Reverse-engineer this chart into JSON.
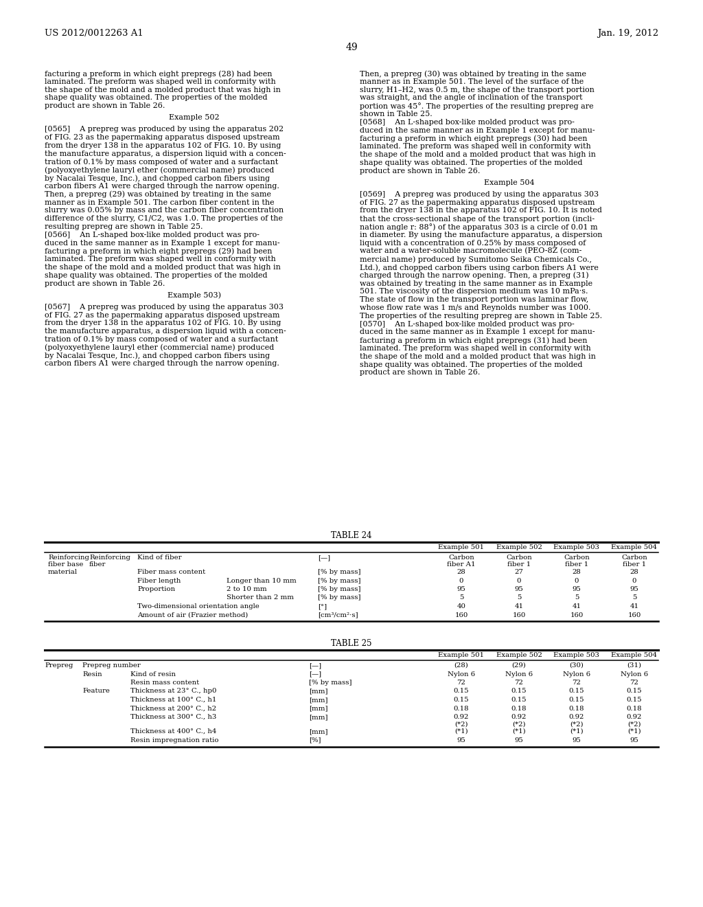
{
  "header_left": "US 2012/0012263 A1",
  "header_right": "Jan. 19, 2012",
  "page_number": "49",
  "background_color": "#ffffff",
  "col1_lines": [
    {
      "text": "facturing a preform in which eight prepregs (28) had been",
      "bold": false,
      "indent": 0
    },
    {
      "text": "laminated. The preform was shaped well in conformity with",
      "bold": false,
      "indent": 0
    },
    {
      "text": "the shape of the mold and a molded product that was high in",
      "bold": false,
      "indent": 0
    },
    {
      "text": "shape quality was obtained. The properties of the molded",
      "bold": false,
      "indent": 0
    },
    {
      "text": "product are shown in Table 26.",
      "bold": false,
      "indent": 0
    },
    {
      "text": "",
      "bold": false,
      "indent": 0
    },
    {
      "text": "Example 502",
      "bold": false,
      "indent": 0,
      "center": true
    },
    {
      "text": "",
      "bold": false,
      "indent": 0
    },
    {
      "text": "[0565]    A prepreg was produced by using the apparatus 202",
      "bold": false,
      "indent": 0
    },
    {
      "text": "of FIG. 23 as the papermaking apparatus disposed upstream",
      "bold": false,
      "indent": 0
    },
    {
      "text": "from the dryer 138 in the apparatus 102 of FIG. 10. By using",
      "bold": false,
      "indent": 0
    },
    {
      "text": "the manufacture apparatus, a dispersion liquid with a concen-",
      "bold": false,
      "indent": 0
    },
    {
      "text": "tration of 0.1% by mass composed of water and a surfactant",
      "bold": false,
      "indent": 0
    },
    {
      "text": "(polyoxyethylene lauryl ether (commercial name) produced",
      "bold": false,
      "indent": 0
    },
    {
      "text": "by Nacalai Tesque, Inc.), and chopped carbon fibers using",
      "bold": false,
      "indent": 0
    },
    {
      "text": "carbon fibers A1 were charged through the narrow opening.",
      "bold": false,
      "indent": 0
    },
    {
      "text": "Then, a prepreg (29) was obtained by treating in the same",
      "bold": false,
      "indent": 0
    },
    {
      "text": "manner as in Example 501. The carbon fiber content in the",
      "bold": false,
      "indent": 0
    },
    {
      "text": "slurry was 0.05% by mass and the carbon fiber concentration",
      "bold": false,
      "indent": 0
    },
    {
      "text": "difference of the slurry, C1/C2, was 1.0. The properties of the",
      "bold": false,
      "indent": 0
    },
    {
      "text": "resulting prepreg are shown in Table 25.",
      "bold": false,
      "indent": 0
    },
    {
      "text": "[0566]    An L-shaped box-like molded product was pro-",
      "bold": false,
      "indent": 0
    },
    {
      "text": "duced in the same manner as in Example 1 except for manu-",
      "bold": false,
      "indent": 0
    },
    {
      "text": "facturing a preform in which eight prepregs (29) had been",
      "bold": false,
      "indent": 0
    },
    {
      "text": "laminated. The preform was shaped well in conformity with",
      "bold": false,
      "indent": 0
    },
    {
      "text": "the shape of the mold and a molded product that was high in",
      "bold": false,
      "indent": 0
    },
    {
      "text": "shape quality was obtained. The properties of the molded",
      "bold": false,
      "indent": 0
    },
    {
      "text": "product are shown in Table 26.",
      "bold": false,
      "indent": 0
    },
    {
      "text": "",
      "bold": false,
      "indent": 0
    },
    {
      "text": "Example 503)",
      "bold": false,
      "indent": 0,
      "center": true
    },
    {
      "text": "",
      "bold": false,
      "indent": 0
    },
    {
      "text": "[0567]    A prepreg was produced by using the apparatus 303",
      "bold": false,
      "indent": 0
    },
    {
      "text": "of FIG. 27 as the papermaking apparatus disposed upstream",
      "bold": false,
      "indent": 0
    },
    {
      "text": "from the dryer 138 in the apparatus 102 of FIG. 10. By using",
      "bold": false,
      "indent": 0
    },
    {
      "text": "the manufacture apparatus, a dispersion liquid with a concen-",
      "bold": false,
      "indent": 0
    },
    {
      "text": "tration of 0.1% by mass composed of water and a surfactant",
      "bold": false,
      "indent": 0
    },
    {
      "text": "(polyoxyethylene lauryl ether (commercial name) produced",
      "bold": false,
      "indent": 0
    },
    {
      "text": "by Nacalai Tesque, Inc.), and chopped carbon fibers using",
      "bold": false,
      "indent": 0
    },
    {
      "text": "carbon fibers A1 were charged through the narrow opening.",
      "bold": false,
      "indent": 0
    }
  ],
  "col2_lines": [
    {
      "text": "Then, a prepreg (30) was obtained by treating in the same",
      "bold": false,
      "indent": 0
    },
    {
      "text": "manner as in Example 501. The level of the surface of the",
      "bold": false,
      "indent": 0
    },
    {
      "text": "slurry, H1–H2, was 0.5 m, the shape of the transport portion",
      "bold": false,
      "indent": 0
    },
    {
      "text": "was straight, and the angle of inclination of the transport",
      "bold": false,
      "indent": 0
    },
    {
      "text": "portion was 45°. The properties of the resulting prepreg are",
      "bold": false,
      "indent": 0
    },
    {
      "text": "shown in Table 25.",
      "bold": false,
      "indent": 0
    },
    {
      "text": "[0568]    An L-shaped box-like molded product was pro-",
      "bold": false,
      "indent": 0
    },
    {
      "text": "duced in the same manner as in Example 1 except for manu-",
      "bold": false,
      "indent": 0
    },
    {
      "text": "facturing a preform in which eight prepregs (30) had been",
      "bold": false,
      "indent": 0
    },
    {
      "text": "laminated. The preform was shaped well in conformity with",
      "bold": false,
      "indent": 0
    },
    {
      "text": "the shape of the mold and a molded product that was high in",
      "bold": false,
      "indent": 0
    },
    {
      "text": "shape quality was obtained. The properties of the molded",
      "bold": false,
      "indent": 0
    },
    {
      "text": "product are shown in Table 26.",
      "bold": false,
      "indent": 0
    },
    {
      "text": "",
      "bold": false,
      "indent": 0
    },
    {
      "text": "Example 504",
      "bold": false,
      "indent": 0,
      "center": true
    },
    {
      "text": "",
      "bold": false,
      "indent": 0
    },
    {
      "text": "[0569]    A prepreg was produced by using the apparatus 303",
      "bold": false,
      "indent": 0
    },
    {
      "text": "of FIG. 27 as the papermaking apparatus disposed upstream",
      "bold": false,
      "indent": 0
    },
    {
      "text": "from the dryer 138 in the apparatus 102 of FIG. 10. It is noted",
      "bold": false,
      "indent": 0
    },
    {
      "text": "that the cross-sectional shape of the transport portion (incli-",
      "bold": false,
      "indent": 0
    },
    {
      "text": "nation angle r: 88°) of the apparatus 303 is a circle of 0.01 m",
      "bold": false,
      "indent": 0
    },
    {
      "text": "in diameter. By using the manufacture apparatus, a dispersion",
      "bold": false,
      "indent": 0
    },
    {
      "text": "liquid with a concentration of 0.25% by mass composed of",
      "bold": false,
      "indent": 0
    },
    {
      "text": "water and a water-soluble macromolecule (PEO-8Z (com-",
      "bold": false,
      "indent": 0
    },
    {
      "text": "mercial name) produced by Sumitomo Seika Chemicals Co.,",
      "bold": false,
      "indent": 0
    },
    {
      "text": "Ltd.), and chopped carbon fibers using carbon fibers A1 were",
      "bold": false,
      "indent": 0
    },
    {
      "text": "charged through the narrow opening. Then, a prepreg (31)",
      "bold": false,
      "indent": 0
    },
    {
      "text": "was obtained by treating in the same manner as in Example",
      "bold": false,
      "indent": 0
    },
    {
      "text": "501. The viscosity of the dispersion medium was 10 mPa·s.",
      "bold": false,
      "indent": 0
    },
    {
      "text": "The state of flow in the transport portion was laminar flow,",
      "bold": false,
      "indent": 0
    },
    {
      "text": "whose flow rate was 1 m/s and Reynolds number was 1000.",
      "bold": false,
      "indent": 0
    },
    {
      "text": "The properties of the resulting prepreg are shown in Table 25.",
      "bold": false,
      "indent": 0
    },
    {
      "text": "[0570]    An L-shaped box-like molded product was pro-",
      "bold": false,
      "indent": 0
    },
    {
      "text": "duced in the same manner as in Example 1 except for manu-",
      "bold": false,
      "indent": 0
    },
    {
      "text": "facturing a preform in which eight prepregs (31) had been",
      "bold": false,
      "indent": 0
    },
    {
      "text": "laminated. The preform was shaped well in conformity with",
      "bold": false,
      "indent": 0
    },
    {
      "text": "the shape of the mold and a molded product that was high in",
      "bold": false,
      "indent": 0
    },
    {
      "text": "shape quality was obtained. The properties of the molded",
      "bold": false,
      "indent": 0
    },
    {
      "text": "product are shown in Table 26.",
      "bold": false,
      "indent": 0
    }
  ],
  "table24_title": "TABLE 24",
  "table25_title": "TABLE 25",
  "example_labels": [
    "Example 501",
    "Example 502",
    "Example 503",
    "Example 504"
  ],
  "t24_rows": [
    [
      "Reinforcing",
      "Reinforcing",
      "Kind of fiber",
      "",
      "[—]",
      "Carbon",
      "Carbon",
      "Carbon",
      "Carbon"
    ],
    [
      "fiber base",
      "fiber",
      "",
      "",
      "",
      "fiber A1",
      "fiber 1",
      "fiber 1",
      "fiber 1"
    ],
    [
      "material",
      "",
      "Fiber mass content",
      "",
      "[% by mass]",
      "28",
      "27",
      "28",
      "28"
    ],
    [
      "",
      "",
      "Fiber length",
      "Longer than 10 mm",
      "[% by mass]",
      "0",
      "0",
      "0",
      "0"
    ],
    [
      "",
      "",
      "Proportion",
      "2 to 10 mm",
      "[% by mass]",
      "95",
      "95",
      "95",
      "95"
    ],
    [
      "",
      "",
      "",
      "Shorter than 2 mm",
      "[% by mass]",
      "5",
      "5",
      "5",
      "5"
    ],
    [
      "",
      "",
      "Two-dimensional orientation angle",
      "",
      "[°]",
      "40",
      "41",
      "41",
      "41"
    ],
    [
      "",
      "",
      "Amount of air (Frazier method)",
      "",
      "[cm³/cm²·s]",
      "160",
      "160",
      "160",
      "160"
    ]
  ],
  "t25_rows": [
    [
      "Prepreg",
      "Prepreg number",
      "",
      "[—]",
      "(28)",
      "(29)",
      "(30)",
      "(31)"
    ],
    [
      "",
      "Resin",
      "Kind of resin",
      "[—]",
      "Nylon 6",
      "Nylon 6",
      "Nylon 6",
      "Nylon 6"
    ],
    [
      "",
      "",
      "Resin mass content",
      "[% by mass]",
      "72",
      "72",
      "72",
      "72"
    ],
    [
      "",
      "Feature",
      "Thickness at 23° C., hp0",
      "[mm]",
      "0.15",
      "0.15",
      "0.15",
      "0.15"
    ],
    [
      "",
      "",
      "Thickness at 100° C., h1",
      "[mm]",
      "0.15",
      "0.15",
      "0.15",
      "0.15"
    ],
    [
      "",
      "",
      "Thickness at 200° C., h2",
      "[mm]",
      "0.18",
      "0.18",
      "0.18",
      "0.18"
    ],
    [
      "",
      "",
      "Thickness at 300° C., h3",
      "[mm]",
      "0.92",
      "0.92",
      "0.92",
      "0.92"
    ],
    [
      "",
      "",
      "",
      "",
      "(*2)",
      "(*2)",
      "(*2)",
      "(*2)"
    ],
    [
      "",
      "",
      "Thickness at 400° C., h4",
      "[mm]",
      "(*1)",
      "(*1)",
      "(*1)",
      "(*1)"
    ],
    [
      "",
      "",
      "Resin impregnation ratio",
      "[%]",
      "95",
      "95",
      "95",
      "95"
    ]
  ]
}
